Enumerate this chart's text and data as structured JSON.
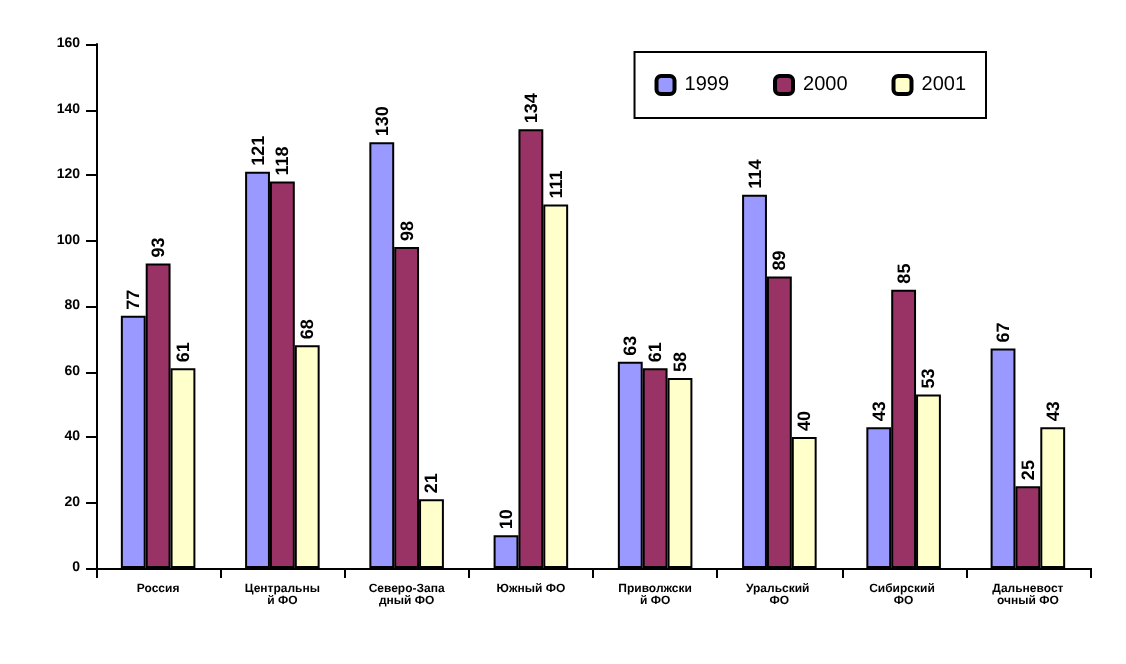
{
  "chart_data": {
    "type": "bar",
    "categories": [
      "Россия",
      "Центральный ФО",
      "Северо-Западный ФО",
      "Южный ФО",
      "Приволжский ФО",
      "Уральский ФО",
      "Сибирский ФО",
      "Дальневосточный ФО"
    ],
    "series": [
      {
        "name": "1999",
        "color": "#9999ff",
        "values": [
          77,
          121,
          130,
          10,
          63,
          114,
          43,
          67
        ]
      },
      {
        "name": "2000",
        "color": "#993366",
        "values": [
          93,
          118,
          98,
          134,
          61,
          89,
          85,
          25
        ]
      },
      {
        "name": "2001",
        "color": "#ffffcc",
        "values": [
          61,
          68,
          21,
          111,
          58,
          40,
          53,
          43
        ]
      }
    ],
    "ylim": [
      0,
      160
    ],
    "yticks": [
      0,
      20,
      40,
      60,
      80,
      100,
      120,
      140,
      160
    ],
    "grid": false,
    "legend": "top right",
    "data_labels": true
  }
}
